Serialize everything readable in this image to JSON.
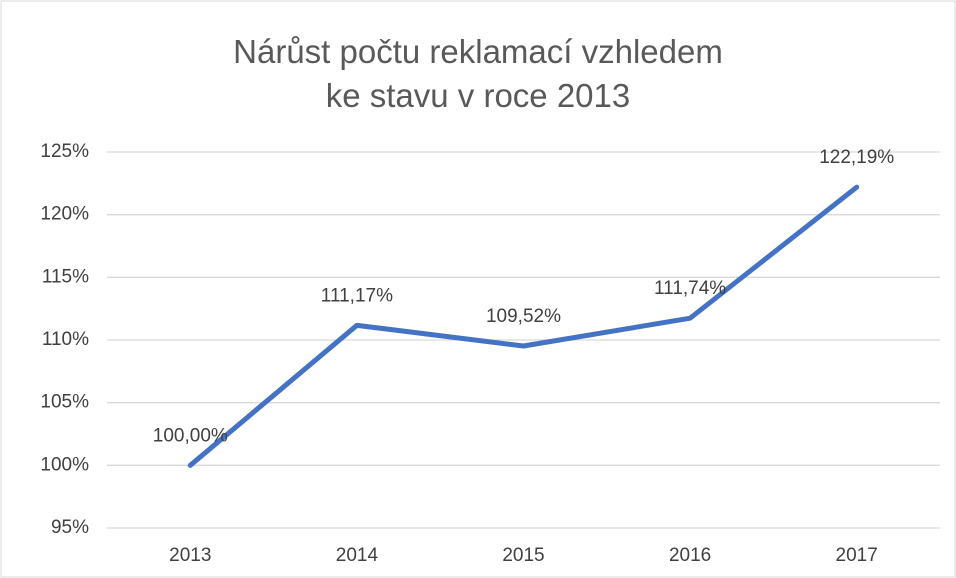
{
  "chart_data": {
    "type": "line",
    "title": "Nárůst počtu reklamací vzhledem ke stavu v roce 2013",
    "categories": [
      "2013",
      "2014",
      "2015",
      "2016",
      "2017"
    ],
    "series": [
      {
        "name": "Nárůst",
        "color": "#4472c4",
        "values": [
          100,
          111.17,
          109.52,
          111.74,
          122.19
        ],
        "value_labels": [
          "100,00%",
          "111,17%",
          "109,52%",
          "111,74%",
          "122,19%"
        ]
      }
    ],
    "ylim": [
      95,
      125
    ],
    "yticks": [
      {
        "value": 95,
        "label": "95%"
      },
      {
        "value": 100,
        "label": "100%"
      },
      {
        "value": 105,
        "label": "105%"
      },
      {
        "value": 110,
        "label": "110%"
      },
      {
        "value": 115,
        "label": "115%"
      },
      {
        "value": 120,
        "label": "120%"
      },
      {
        "value": 125,
        "label": "125%"
      }
    ],
    "grid": true
  }
}
